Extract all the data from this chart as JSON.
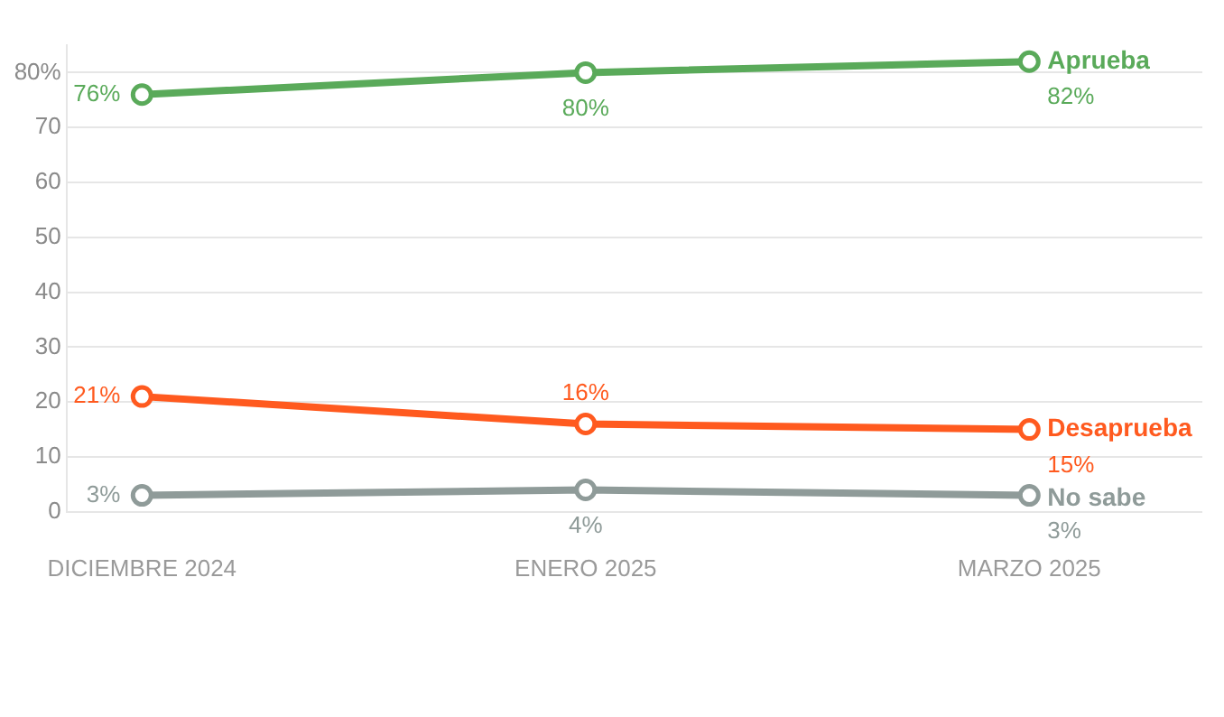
{
  "chart_data": {
    "type": "line",
    "categories": [
      "DICIEMBRE 2024",
      "ENERO 2025",
      "MARZO 2025"
    ],
    "series": [
      {
        "name": "Aprueba",
        "color": "#5aaa5a",
        "values": [
          76,
          80,
          82
        ],
        "value_labels": [
          "76%",
          "80%",
          "82%"
        ]
      },
      {
        "name": "Desaprueba",
        "color": "#ff5a1f",
        "values": [
          21,
          16,
          15
        ],
        "value_labels": [
          "21%",
          "16%",
          "15%"
        ]
      },
      {
        "name": "No sabe",
        "color": "#8f9b99",
        "values": [
          3,
          4,
          3
        ],
        "value_labels": [
          "3%",
          "4%",
          "3%"
        ]
      }
    ],
    "ylim": [
      0,
      85
    ],
    "yticks": [
      0,
      10,
      20,
      30,
      40,
      50,
      60,
      70,
      {
        "value": 80,
        "label": "80%"
      }
    ],
    "grid": "y",
    "legend": false,
    "marker": "circle",
    "line_style": "solid"
  }
}
